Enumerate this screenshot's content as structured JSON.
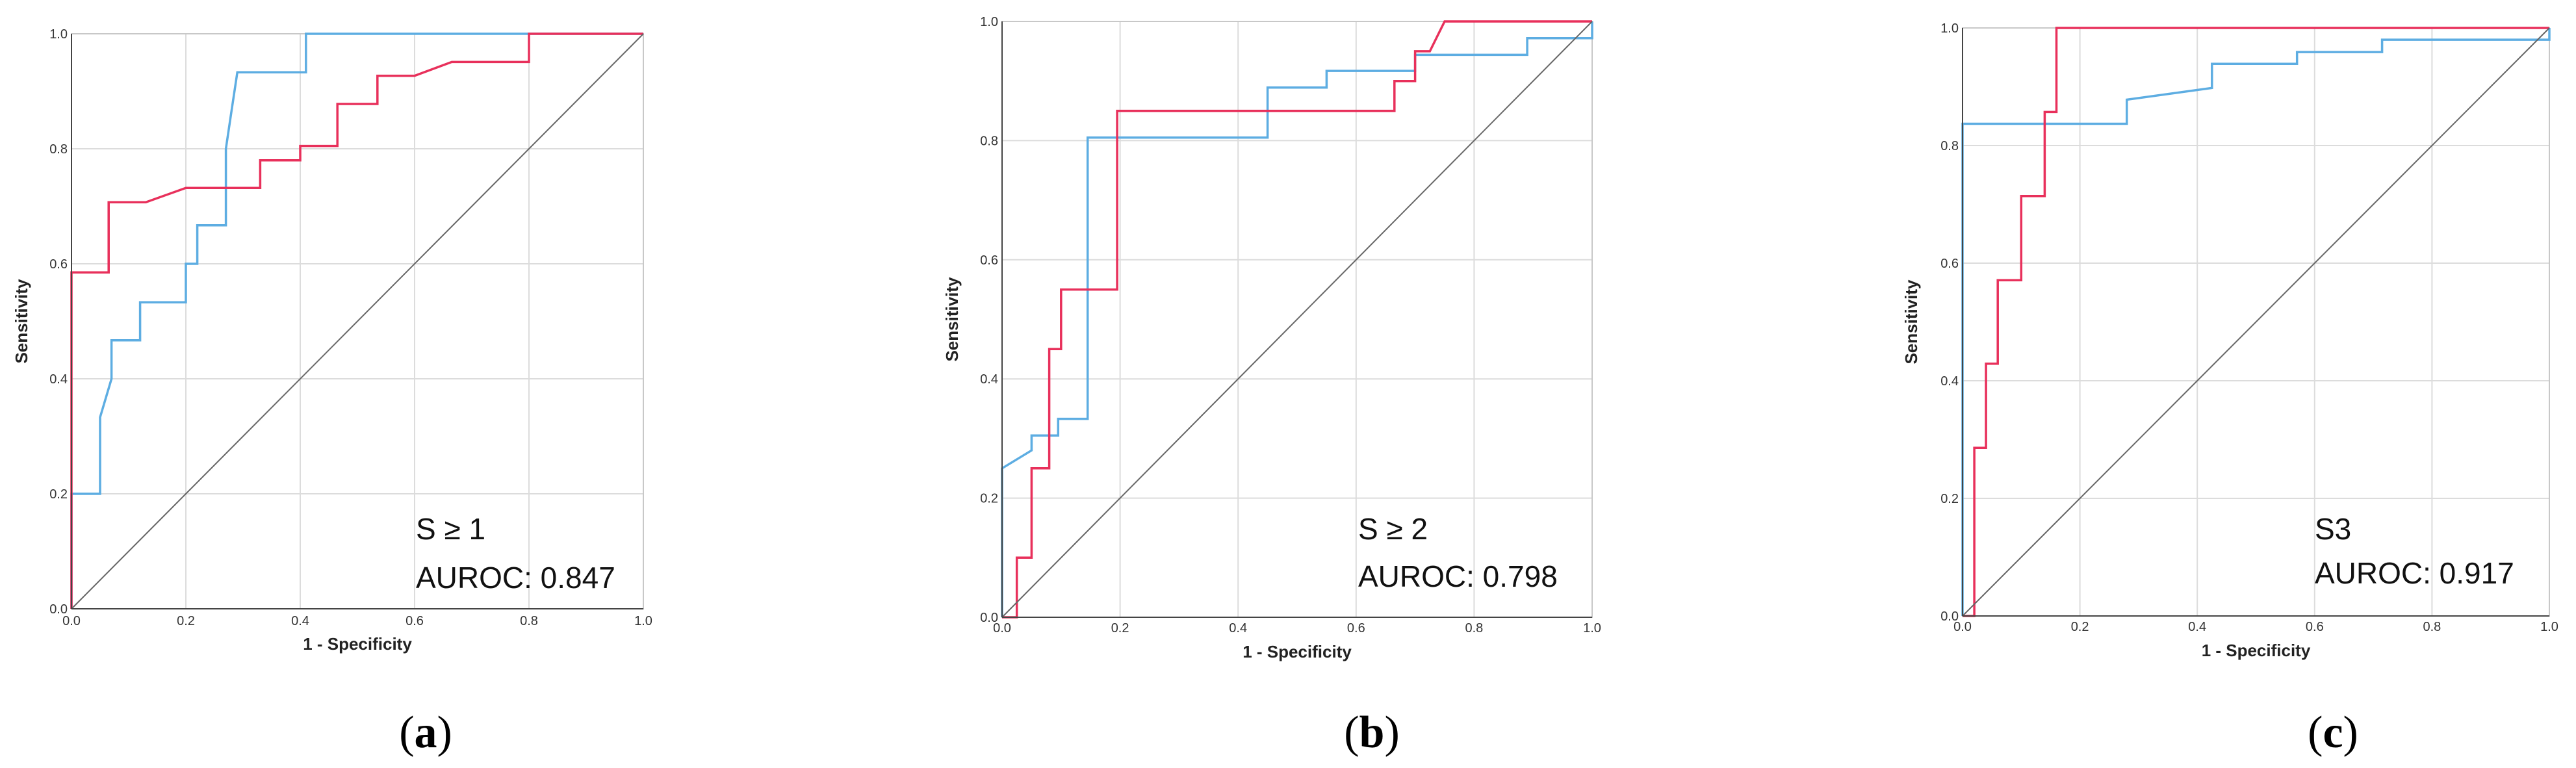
{
  "figure": {
    "panels": [
      {
        "label_open": "(",
        "letter": "a",
        "label_close": ")"
      },
      {
        "label_open": "(",
        "letter": "b",
        "label_close": ")"
      },
      {
        "label_open": "(",
        "letter": "c",
        "label_close": ")"
      }
    ]
  },
  "chart_data": [
    {
      "type": "line",
      "xlabel": "1 - Specificity",
      "ylabel": "Sensitivity",
      "xlim": [
        0,
        1
      ],
      "ylim": [
        0,
        1
      ],
      "xticks": [
        "0.0",
        "0.2",
        "0.4",
        "0.6",
        "0.8",
        "1.0"
      ],
      "yticks": [
        "0.0",
        "0.2",
        "0.4",
        "0.6",
        "0.8",
        "1.0"
      ],
      "grid": true,
      "annotation_title": "S ≥ 1",
      "annotation_auroc": "AUROC: 0.847",
      "series": [
        {
          "name": "blue",
          "color": "#5DADE2",
          "points": [
            [
              0,
              0
            ],
            [
              0,
              0.2
            ],
            [
              0.05,
              0.2
            ],
            [
              0.05,
              0.333
            ],
            [
              0.07,
              0.4
            ],
            [
              0.07,
              0.467
            ],
            [
              0.12,
              0.467
            ],
            [
              0.12,
              0.533
            ],
            [
              0.2,
              0.533
            ],
            [
              0.2,
              0.6
            ],
            [
              0.22,
              0.6
            ],
            [
              0.22,
              0.667
            ],
            [
              0.27,
              0.667
            ],
            [
              0.27,
              0.8
            ],
            [
              0.28,
              0.867
            ],
            [
              0.29,
              0.933
            ],
            [
              0.41,
              0.933
            ],
            [
              0.41,
              1.0
            ],
            [
              1.0,
              1.0
            ]
          ]
        },
        {
          "name": "red",
          "color": "#E8305B",
          "points": [
            [
              0,
              0
            ],
            [
              0,
              0.585
            ],
            [
              0.065,
              0.585
            ],
            [
              0.065,
              0.707
            ],
            [
              0.13,
              0.707
            ],
            [
              0.2,
              0.732
            ],
            [
              0.33,
              0.732
            ],
            [
              0.33,
              0.78
            ],
            [
              0.4,
              0.78
            ],
            [
              0.4,
              0.805
            ],
            [
              0.465,
              0.805
            ],
            [
              0.465,
              0.878
            ],
            [
              0.535,
              0.878
            ],
            [
              0.535,
              0.927
            ],
            [
              0.6,
              0.927
            ],
            [
              0.665,
              0.951
            ],
            [
              0.8,
              0.951
            ],
            [
              0.8,
              1.0
            ],
            [
              1.0,
              1.0
            ]
          ]
        },
        {
          "name": "reference",
          "color": "#666666",
          "points": [
            [
              0,
              0
            ],
            [
              1,
              1
            ]
          ]
        }
      ]
    },
    {
      "type": "line",
      "xlabel": "1 - Specificity",
      "ylabel": "Sensitivity",
      "xlim": [
        0,
        1
      ],
      "ylim": [
        0,
        1
      ],
      "xticks": [
        "0.0",
        "0.2",
        "0.4",
        "0.6",
        "0.8",
        "1.0"
      ],
      "yticks": [
        "0.0",
        "0.2",
        "0.4",
        "0.6",
        "0.8",
        "1.0"
      ],
      "grid": true,
      "annotation_title": "S ≥ 2",
      "annotation_auroc": "AUROC: 0.798",
      "series": [
        {
          "name": "blue",
          "color": "#5DADE2",
          "points": [
            [
              0,
              0
            ],
            [
              0,
              0.25
            ],
            [
              0.05,
              0.28
            ],
            [
              0.05,
              0.305
            ],
            [
              0.095,
              0.305
            ],
            [
              0.095,
              0.333
            ],
            [
              0.145,
              0.333
            ],
            [
              0.145,
              0.805
            ],
            [
              0.45,
              0.805
            ],
            [
              0.45,
              0.889
            ],
            [
              0.55,
              0.889
            ],
            [
              0.55,
              0.917
            ],
            [
              0.7,
              0.917
            ],
            [
              0.7,
              0.944
            ],
            [
              0.89,
              0.944
            ],
            [
              0.89,
              0.972
            ],
            [
              1.0,
              0.972
            ],
            [
              1.0,
              1.0
            ]
          ]
        },
        {
          "name": "red",
          "color": "#E8305B",
          "points": [
            [
              0,
              0
            ],
            [
              0.025,
              0
            ],
            [
              0.025,
              0.1
            ],
            [
              0.05,
              0.1
            ],
            [
              0.05,
              0.25
            ],
            [
              0.08,
              0.25
            ],
            [
              0.08,
              0.45
            ],
            [
              0.1,
              0.45
            ],
            [
              0.1,
              0.55
            ],
            [
              0.195,
              0.55
            ],
            [
              0.195,
              0.85
            ],
            [
              0.665,
              0.85
            ],
            [
              0.665,
              0.9
            ],
            [
              0.7,
              0.9
            ],
            [
              0.7,
              0.95
            ],
            [
              0.725,
              0.95
            ],
            [
              0.75,
              1.0
            ],
            [
              1.0,
              1.0
            ]
          ]
        },
        {
          "name": "reference",
          "color": "#666666",
          "points": [
            [
              0,
              0
            ],
            [
              1,
              1
            ]
          ]
        }
      ]
    },
    {
      "type": "line",
      "xlabel": "1 - Specificity",
      "ylabel": "Sensitivity",
      "xlim": [
        0,
        1
      ],
      "ylim": [
        0,
        1
      ],
      "xticks": [
        "0.0",
        "0.2",
        "0.4",
        "0.6",
        "0.8",
        "1.0"
      ],
      "yticks": [
        "0.0",
        "0.2",
        "0.4",
        "0.6",
        "0.8",
        "1.0"
      ],
      "grid": true,
      "annotation_title": "S3",
      "annotation_auroc": "AUROC: 0.917",
      "series": [
        {
          "name": "blue",
          "color": "#5DADE2",
          "points": [
            [
              0,
              0
            ],
            [
              0,
              0.837
            ],
            [
              0.28,
              0.837
            ],
            [
              0.28,
              0.878
            ],
            [
              0.425,
              0.898
            ],
            [
              0.425,
              0.939
            ],
            [
              0.57,
              0.939
            ],
            [
              0.57,
              0.959
            ],
            [
              0.715,
              0.959
            ],
            [
              0.715,
              0.98
            ],
            [
              1.0,
              0.98
            ],
            [
              1.0,
              1.0
            ]
          ]
        },
        {
          "name": "red",
          "color": "#E8305B",
          "points": [
            [
              0,
              0
            ],
            [
              0.02,
              0
            ],
            [
              0.02,
              0.286
            ],
            [
              0.04,
              0.286
            ],
            [
              0.04,
              0.429
            ],
            [
              0.06,
              0.429
            ],
            [
              0.06,
              0.571
            ],
            [
              0.1,
              0.571
            ],
            [
              0.1,
              0.714
            ],
            [
              0.14,
              0.714
            ],
            [
              0.14,
              0.857
            ],
            [
              0.16,
              0.857
            ],
            [
              0.16,
              1.0
            ],
            [
              1.0,
              1.0
            ]
          ]
        },
        {
          "name": "reference",
          "color": "#666666",
          "points": [
            [
              0,
              0
            ],
            [
              1,
              1
            ]
          ]
        }
      ]
    }
  ]
}
